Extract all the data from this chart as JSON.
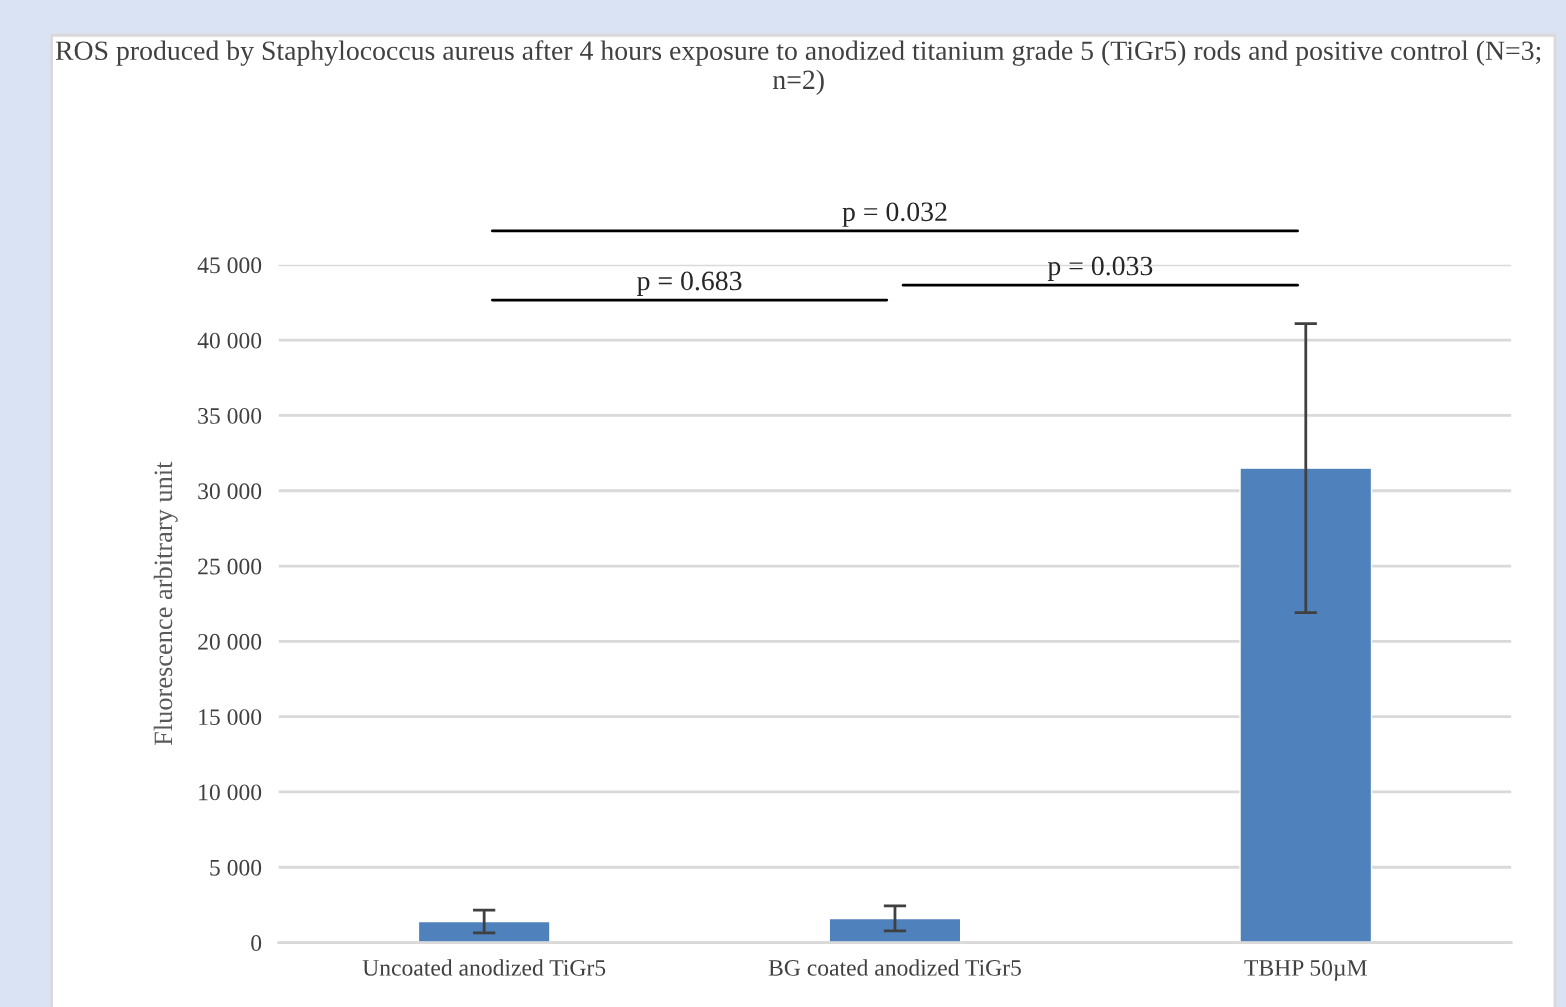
{
  "chart_data": {
    "type": "bar",
    "title": "ROS produced by Staphylococcus aureus after 4 hours exposure to anodized titanium grade 5 (TiGr5) rods and positive control (N=3; n=2)",
    "ylabel": "Fluorescence arbitrary unit",
    "categories": [
      "Uncoated anodized TiGr5",
      "BG coated anodized TiGr5",
      "TBHP 50µM"
    ],
    "values": [
      1400,
      1600,
      31500
    ],
    "errors": [
      760,
      830,
      9600
    ],
    "color": "#4f81bd",
    "ylim": [
      0,
      45000
    ],
    "yticks": [
      {
        "value": 0,
        "label": "0"
      },
      {
        "value": 5000,
        "label": "5 000"
      },
      {
        "value": 10000,
        "label": "10 000"
      },
      {
        "value": 15000,
        "label": "15 000"
      },
      {
        "value": 20000,
        "label": "20 000"
      },
      {
        "value": 25000,
        "label": "25 000"
      },
      {
        "value": 30000,
        "label": "30 000"
      },
      {
        "value": 35000,
        "label": "35 000"
      },
      {
        "value": 40000,
        "label": "40 000"
      },
      {
        "value": 45000,
        "label": "45 000"
      }
    ],
    "grid": "y",
    "annotations": [
      "p = 0.032",
      "p = 0.683",
      "p = 0.033"
    ]
  }
}
